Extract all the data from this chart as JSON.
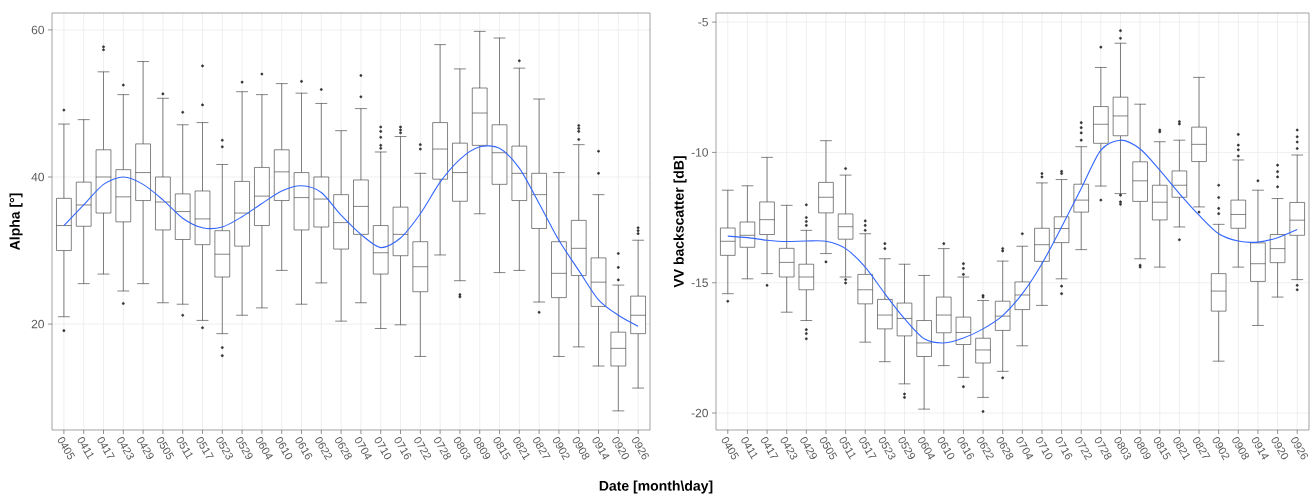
{
  "chart_data": [
    {
      "type": "box",
      "xlabel": "Date [month\\day]",
      "ylabel": "Alpha [°]",
      "categories": [
        "0405",
        "0411",
        "0417",
        "0423",
        "0429",
        "0505",
        "0511",
        "0517",
        "0523",
        "0529",
        "0604",
        "0610",
        "0616",
        "0622",
        "0628",
        "0704",
        "0710",
        "0716",
        "0722",
        "0728",
        "0803",
        "0809",
        "0815",
        "0821",
        "0827",
        "0902",
        "0908",
        "0914",
        "0920",
        "0926"
      ],
      "ylim": [
        5.6,
        62.3
      ],
      "yticks": [
        20,
        40,
        60
      ],
      "grid": true,
      "series": [
        {
          "type": "box",
          "color": "#333333",
          "boxes": [
            {
              "low": 21,
              "q1": 30.0,
              "median": 33.4,
              "q3": 37.1,
              "high": 47.2,
              "outliers": [
                49.1,
                19.1
              ]
            },
            {
              "low": 25.5,
              "q1": 33.3,
              "median": 36.2,
              "q3": 39.3,
              "high": 47.8
            },
            {
              "low": 26.8,
              "q1": 35.1,
              "median": 40.0,
              "q3": 43.7,
              "high": 54.3,
              "outliers": [
                57.7,
                57.3
              ]
            },
            {
              "low": 24.5,
              "q1": 33.9,
              "median": 37.3,
              "q3": 41.0,
              "high": 51.2,
              "outliers": [
                52.5,
                22.8
              ]
            },
            {
              "low": 25.5,
              "q1": 36.8,
              "median": 40.6,
              "q3": 44.5,
              "high": 55.7
            },
            {
              "low": 22.9,
              "q1": 32.8,
              "median": 36.6,
              "q3": 40.0,
              "high": 50.7,
              "outliers": [
                51.3
              ]
            },
            {
              "low": 22.7,
              "q1": 31.5,
              "median": 35.3,
              "q3": 37.7,
              "high": 47.1,
              "outliers": [
                48.8,
                21.2
              ]
            },
            {
              "low": 20.5,
              "q1": 30.8,
              "median": 34.3,
              "q3": 38.1,
              "high": 47.4,
              "outliers": [
                55.1,
                49.8,
                19.5
              ]
            },
            {
              "low": 18.7,
              "q1": 26.4,
              "median": 29.5,
              "q3": 32.7,
              "high": 41.7,
              "outliers": [
                45.0,
                44.1,
                16.8,
                15.7
              ]
            },
            {
              "low": 21.2,
              "q1": 30.6,
              "median": 35.1,
              "q3": 39.4,
              "high": 51.6,
              "outliers": [
                52.9
              ]
            },
            {
              "low": 22.2,
              "q1": 33.4,
              "median": 37.4,
              "q3": 41.3,
              "high": 51.2,
              "outliers": [
                54.0
              ]
            },
            {
              "low": 27.3,
              "q1": 36.8,
              "median": 40.7,
              "q3": 43.7,
              "high": 52.7
            },
            {
              "low": 22.7,
              "q1": 32.8,
              "median": 37.2,
              "q3": 40.6,
              "high": 51.4,
              "outliers": [
                53.0
              ]
            },
            {
              "low": 25.6,
              "q1": 33.2,
              "median": 37.0,
              "q3": 40.0,
              "high": 50.0,
              "outliers": [
                51.9
              ]
            },
            {
              "low": 20.4,
              "q1": 30.2,
              "median": 33.8,
              "q3": 37.6,
              "high": 46.3
            },
            {
              "low": 22.9,
              "q1": 32.2,
              "median": 36.0,
              "q3": 39.6,
              "high": 49.3,
              "outliers": [
                53.8,
                50.9
              ]
            },
            {
              "low": 19.4,
              "q1": 26.8,
              "median": 29.7,
              "q3": 33.4,
              "high": 43.4,
              "outliers": [
                46.8,
                46.2,
                45.4,
                44.3,
                43.9
              ]
            },
            {
              "low": 19.9,
              "q1": 29.3,
              "median": 32.2,
              "q3": 35.9,
              "high": 45.5,
              "outliers": [
                46.8,
                46.4,
                46.0
              ]
            },
            {
              "low": 15.6,
              "q1": 24.4,
              "median": 27.8,
              "q3": 31.2,
              "high": 40.5,
              "outliers": [
                44.4,
                43.8
              ]
            },
            {
              "low": 29.4,
              "q1": 39.7,
              "median": 43.8,
              "q3": 47.4,
              "high": 58.0
            },
            {
              "low": 25.9,
              "q1": 36.7,
              "median": 40.6,
              "q3": 44.6,
              "high": 54.7,
              "outliers": [
                24.0,
                23.7
              ]
            },
            {
              "low": 35.0,
              "q1": 44.3,
              "median": 48.7,
              "q3": 52.1,
              "high": 59.8
            },
            {
              "low": 27.0,
              "q1": 39.0,
              "median": 43.3,
              "q3": 47.1,
              "high": 58.9
            },
            {
              "low": 27.3,
              "q1": 36.8,
              "median": 40.5,
              "q3": 44.2,
              "high": 54.8,
              "outliers": [
                55.8
              ]
            },
            {
              "low": 23.0,
              "q1": 33.0,
              "median": 37.6,
              "q3": 40.5,
              "high": 50.6,
              "outliers": [
                21.6
              ]
            },
            {
              "low": 15.6,
              "q1": 23.6,
              "median": 26.9,
              "q3": 31.2,
              "high": 40.6
            },
            {
              "low": 16.9,
              "q1": 26.6,
              "median": 30.3,
              "q3": 34.1,
              "high": 44.4,
              "outliers": [
                47.0,
                46.6,
                46.2,
                45.1
              ]
            },
            {
              "low": 14.3,
              "q1": 22.4,
              "median": 25.7,
              "q3": 29.0,
              "high": 37.6,
              "outliers": [
                43.5,
                40.5
              ]
            },
            {
              "low": 8.2,
              "q1": 14.3,
              "median": 16.7,
              "q3": 18.9,
              "high": 25.3,
              "outliers": [
                29.6,
                27.7,
                26.0
              ]
            },
            {
              "low": 11.3,
              "q1": 18.7,
              "median": 21.2,
              "q3": 23.8,
              "high": 31.4,
              "outliers": [
                33.1,
                32.7,
                32.3
              ]
            }
          ]
        },
        {
          "type": "line",
          "color": "#3366ff",
          "values": [
            33.4,
            36.2,
            39.0,
            40.0,
            39.0,
            36.9,
            34.4,
            33.1,
            33.2,
            34.6,
            36.4,
            38.1,
            38.8,
            37.9,
            34.8,
            32.2,
            30.4,
            31.7,
            35.0,
            39.3,
            42.4,
            44.1,
            43.9,
            41.2,
            36.4,
            31.4,
            27.3,
            23.3,
            21.2,
            19.7
          ]
        }
      ]
    },
    {
      "type": "box",
      "ylabel": "VV backscatter [dB]",
      "categories": [
        "0405",
        "0411",
        "0417",
        "0423",
        "0429",
        "0505",
        "0511",
        "0517",
        "0523",
        "0529",
        "0604",
        "0610",
        "0616",
        "0622",
        "0628",
        "0704",
        "0710",
        "0716",
        "0722",
        "0728",
        "0803",
        "0809",
        "0815",
        "0821",
        "0827",
        "0902",
        "0908",
        "0914",
        "0920",
        "0926"
      ],
      "ylim": [
        -20.65,
        -4.65
      ],
      "yticks": [
        -5,
        -10,
        -15,
        -20
      ],
      "grid": true,
      "series": [
        {
          "type": "box",
          "color": "#333333",
          "boxes": [
            {
              "low": -15.42,
              "q1": -13.95,
              "median": -13.41,
              "q3": -12.9,
              "high": -11.45,
              "outliers": [
                -15.71
              ]
            },
            {
              "low": -14.85,
              "q1": -13.64,
              "median": -13.18,
              "q3": -12.67,
              "high": -11.28
            },
            {
              "low": -14.65,
              "q1": -13.15,
              "median": -12.58,
              "q3": -11.9,
              "high": -10.19,
              "outliers": [
                -15.1
              ]
            },
            {
              "low": -16.13,
              "q1": -14.78,
              "median": -14.22,
              "q3": -13.68,
              "high": -12.03
            },
            {
              "low": -16.45,
              "q1": -15.27,
              "median": -14.78,
              "q3": -14.29,
              "high": -12.99,
              "outliers": [
                -12.01,
                -12.5,
                -12.65,
                -12.8,
                -16.8,
                -16.95,
                -17.15
              ]
            },
            {
              "low": -13.88,
              "q1": -12.32,
              "median": -11.72,
              "q3": -11.15,
              "high": -9.55,
              "outliers": [
                -14.2
              ]
            },
            {
              "low": -14.78,
              "q1": -13.33,
              "median": -12.85,
              "q3": -12.36,
              "high": -10.87,
              "outliers": [
                -10.62,
                -14.88,
                -15.01
              ]
            },
            {
              "low": -17.28,
              "q1": -15.81,
              "median": -15.27,
              "q3": -14.68,
              "high": -13.12,
              "outliers": [
                -12.63,
                -12.8,
                -12.99
              ]
            },
            {
              "low": -18.03,
              "q1": -16.77,
              "median": -16.24,
              "q3": -15.64,
              "high": -14.08,
              "outliers": [
                -13.5,
                -13.69
              ]
            },
            {
              "low": -18.88,
              "q1": -17.04,
              "median": -16.37,
              "q3": -15.78,
              "high": -14.29,
              "outliers": [
                -19.27,
                -19.4
              ]
            },
            {
              "low": -19.85,
              "q1": -17.83,
              "median": -17.31,
              "q3": -16.45,
              "high": -14.72
            },
            {
              "low": -18.18,
              "q1": -16.92,
              "median": -16.24,
              "q3": -15.55,
              "high": -13.69,
              "outliers": [
                -13.5
              ]
            },
            {
              "low": -18.63,
              "q1": -17.37,
              "median": -16.91,
              "q3": -16.32,
              "high": -14.78,
              "outliers": [
                -14.27,
                -14.45,
                -14.68,
                -18.99
              ]
            },
            {
              "low": -19.4,
              "q1": -18.08,
              "median": -17.58,
              "q3": -17.13,
              "high": -15.68,
              "outliers": [
                -15.49,
                -15.55,
                -19.94
              ]
            },
            {
              "low": -18.4,
              "q1": -16.83,
              "median": -16.28,
              "q3": -15.71,
              "high": -14.17,
              "outliers": [
                -13.69,
                -13.78,
                -18.65
              ]
            },
            {
              "low": -17.42,
              "q1": -16.03,
              "median": -15.47,
              "q3": -14.97,
              "high": -13.6,
              "outliers": [
                -13.12
              ]
            },
            {
              "low": -15.87,
              "q1": -14.18,
              "median": -13.54,
              "q3": -12.91,
              "high": -11.17,
              "outliers": [
                -10.81,
                -10.94
              ]
            },
            {
              "low": -14.85,
              "q1": -13.46,
              "median": -12.92,
              "q3": -12.47,
              "high": -11.04,
              "outliers": [
                -10.73,
                -10.81,
                -15.13,
                -15.42
              ]
            },
            {
              "low": -13.73,
              "q1": -12.29,
              "median": -11.83,
              "q3": -11.22,
              "high": -9.78,
              "outliers": [
                -8.86,
                -9.05,
                -9.25,
                -9.53
              ]
            },
            {
              "low": -11.29,
              "q1": -9.65,
              "median": -8.92,
              "q3": -8.24,
              "high": -6.74,
              "outliers": [
                -5.96,
                -11.83
              ]
            },
            {
              "low": -11.58,
              "q1": -9.36,
              "median": -8.6,
              "q3": -7.88,
              "high": -5.81,
              "outliers": [
                -5.33,
                -5.62,
                -11.64,
                -11.9,
                -11.99
              ]
            },
            {
              "low": -14.08,
              "q1": -11.88,
              "median": -11.09,
              "q3": -10.36,
              "high": -8.15,
              "outliers": [
                -14.33,
                -14.4
              ]
            },
            {
              "low": -14.4,
              "q1": -12.59,
              "median": -11.91,
              "q3": -11.26,
              "high": -9.59,
              "outliers": [
                -9.14,
                -9.21
              ]
            },
            {
              "low": -12.86,
              "q1": -11.72,
              "median": -11.26,
              "q3": -10.71,
              "high": -9.53,
              "outliers": [
                -8.82,
                -8.91,
                -13.35
              ]
            },
            {
              "low": -12.09,
              "q1": -10.35,
              "median": -9.69,
              "q3": -9.03,
              "high": -7.12,
              "outliers": [
                -12.29
              ]
            },
            {
              "low": -18.01,
              "q1": -16.09,
              "median": -15.32,
              "q3": -14.65,
              "high": -12.76,
              "outliers": [
                -11.26,
                -11.73,
                -12.15,
                -12.35
              ]
            },
            {
              "low": -14.4,
              "q1": -12.91,
              "median": -12.38,
              "q3": -11.83,
              "high": -10.29,
              "outliers": [
                -9.31,
                -9.72,
                -9.9,
                -10.14
              ]
            },
            {
              "low": -16.64,
              "q1": -14.95,
              "median": -14.27,
              "q3": -13.47,
              "high": -11.45,
              "outliers": [
                -11.09
              ]
            },
            {
              "low": -15.55,
              "q1": -14.23,
              "median": -13.69,
              "q3": -13.15,
              "high": -11.77,
              "outliers": [
                -10.49,
                -10.74,
                -10.94,
                -11.32
              ]
            },
            {
              "low": -14.88,
              "q1": -13.18,
              "median": -12.6,
              "q3": -11.92,
              "high": -10.1,
              "outliers": [
                -9.14,
                -9.4,
                -9.6,
                -9.85,
                -15.1,
                -15.27
              ]
            }
          ]
        },
        {
          "type": "line",
          "color": "#3366ff",
          "values": [
            -13.21,
            -13.27,
            -13.37,
            -13.42,
            -13.4,
            -13.41,
            -13.69,
            -14.4,
            -15.42,
            -16.38,
            -17.15,
            -17.31,
            -17.12,
            -16.77,
            -16.26,
            -15.42,
            -14.27,
            -12.86,
            -11.38,
            -9.91,
            -9.53,
            -9.87,
            -10.68,
            -11.58,
            -12.41,
            -13.12,
            -13.4,
            -13.44,
            -13.27,
            -12.96
          ]
        }
      ]
    }
  ]
}
